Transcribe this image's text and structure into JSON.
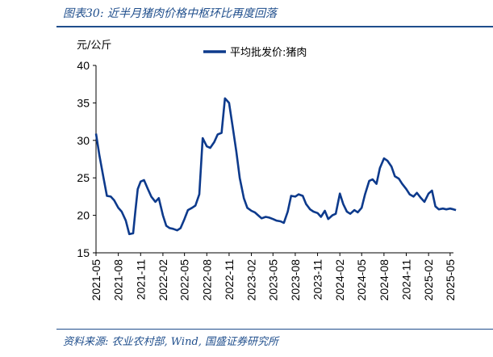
{
  "caption": "图表30:  近半月猪肉价格中枢环比再度回落",
  "source": "资料来源:  农业农村部, Wind, 国盛证券研究所",
  "chart_data": {
    "type": "line",
    "title": "",
    "ylabel": "元/公斤",
    "ylim": [
      15,
      40
    ],
    "yticks": [
      15,
      20,
      25,
      30,
      35,
      40
    ],
    "xticks": [
      "2021-05",
      "2021-08",
      "2021-11",
      "2022-02",
      "2022-05",
      "2022-08",
      "2022-11",
      "2023-02",
      "2023-05",
      "2023-08",
      "2023-11",
      "2024-02",
      "2024-05",
      "2024-08",
      "2024-11",
      "2025-02",
      "2025-05"
    ],
    "legend_position": "top",
    "grid": false,
    "color": "#0d3a8c",
    "series": [
      {
        "name": "平均批发价:猪肉",
        "x": [
          "2021-05",
          "2021-05-15",
          "2021-06",
          "2021-06-15",
          "2021-07",
          "2021-07-15",
          "2021-08",
          "2021-08-15",
          "2021-09",
          "2021-09-15",
          "2021-10",
          "2021-10-10",
          "2021-10-20",
          "2021-11",
          "2021-11-15",
          "2021-12",
          "2021-12-15",
          "2022-01",
          "2022-01-15",
          "2022-02",
          "2022-02-15",
          "2022-03",
          "2022-03-15",
          "2022-04",
          "2022-04-15",
          "2022-05",
          "2022-05-15",
          "2022-06",
          "2022-06-15",
          "2022-07",
          "2022-07-15",
          "2022-08",
          "2022-08-15",
          "2022-09",
          "2022-09-15",
          "2022-10",
          "2022-10-15",
          "2022-11",
          "2022-11-15",
          "2022-12",
          "2022-12-15",
          "2023-01",
          "2023-01-15",
          "2023-02",
          "2023-02-15",
          "2023-03",
          "2023-03-15",
          "2023-04",
          "2023-04-15",
          "2023-05",
          "2023-05-15",
          "2023-06",
          "2023-06-15",
          "2023-07",
          "2023-07-15",
          "2023-08",
          "2023-08-15",
          "2023-09",
          "2023-09-15",
          "2023-10",
          "2023-10-15",
          "2023-11",
          "2023-11-15",
          "2023-12",
          "2023-12-15",
          "2024-01",
          "2024-01-15",
          "2024-02",
          "2024-02-15",
          "2024-03",
          "2024-03-15",
          "2024-04",
          "2024-04-15",
          "2024-05",
          "2024-05-15",
          "2024-06",
          "2024-06-15",
          "2024-07",
          "2024-07-15",
          "2024-08",
          "2024-08-15",
          "2024-09",
          "2024-09-15",
          "2024-10",
          "2024-10-15",
          "2024-11",
          "2024-11-15",
          "2024-12",
          "2024-12-15",
          "2025-01",
          "2025-01-15",
          "2025-02",
          "2025-02-15",
          "2025-03",
          "2025-03-15",
          "2025-04",
          "2025-04-15",
          "2025-05",
          "2025-05-15",
          "2025-05-25"
        ],
        "values": [
          30.9,
          28.0,
          25.0,
          22.6,
          22.5,
          22.0,
          21.0,
          20.5,
          19.3,
          17.5,
          17.6,
          20.5,
          23.5,
          24.5,
          24.7,
          23.5,
          22.5,
          21.8,
          22.3,
          20.0,
          18.6,
          18.3,
          18.2,
          18.0,
          18.3,
          19.5,
          20.7,
          21.0,
          21.3,
          22.8,
          30.3,
          29.2,
          29.0,
          29.8,
          30.8,
          31.0,
          35.6,
          35.0,
          32.0,
          28.5,
          25.0,
          22.3,
          21.0,
          20.6,
          20.4,
          20.0,
          19.6,
          19.8,
          19.7,
          19.5,
          19.3,
          19.2,
          19.0,
          20.5,
          22.6,
          22.5,
          22.8,
          22.6,
          21.5,
          20.8,
          20.5,
          20.3,
          19.8,
          20.6,
          19.5,
          20.0,
          20.2,
          22.9,
          21.5,
          20.5,
          20.2,
          20.7,
          20.4,
          21.0,
          22.8,
          24.6,
          24.8,
          24.2,
          26.3,
          27.6,
          27.3,
          26.5,
          25.2,
          24.9,
          24.2,
          23.5,
          22.8,
          22.5,
          23.0,
          22.3,
          21.8,
          22.9,
          23.3,
          21.2,
          20.8,
          20.9,
          20.8,
          20.9,
          20.8,
          20.7
        ]
      }
    ]
  }
}
